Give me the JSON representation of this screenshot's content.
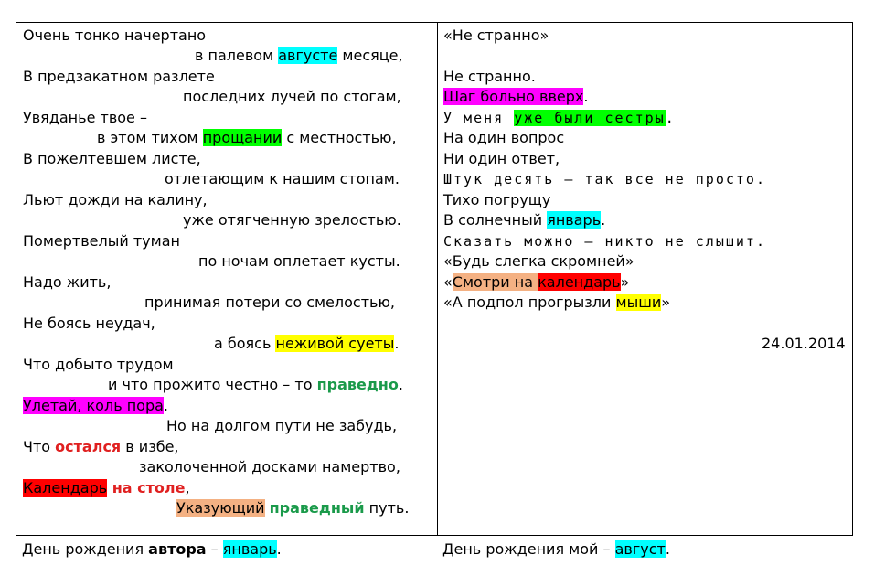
{
  "left_poem": {
    "l1": "Очень тонко начертано",
    "l2_pre": "в палевом ",
    "l2_hl": "августе",
    "l2_post": " месяце,",
    "l3": "В предзакатном разлете",
    "l4": "последних лучей по стогам,",
    "l5": "Увяданье твое –",
    "l6_pre": "в этом тихом ",
    "l6_hl": "прощании",
    "l6_post": " с местностью,",
    "l7": "В пожелтевшем листе,",
    "l8": "отлетающим к нашим стопам.",
    "l9": "Льют дожди на калину,",
    "l10": "уже отягченную зрелостью.",
    "l11": "Помертвелый туман",
    "l12": "по ночам оплетает кусты.",
    "l13": "Надо жить,",
    "l14": "принимая потери со смелостью,",
    "l15": "Не боясь неудач,",
    "l16_pre": "а боясь ",
    "l16_hl": "неживой суеты",
    "l16_post": ".",
    "l17": "Что добыто трудом",
    "l18_pre": "и что прожито честно – то ",
    "l18_bold": "праведно",
    "l18_post": ".",
    "l19_hl": "Улетай, коль пора",
    "l19_post": ".",
    "l20": "Но на долгом пути не забудь,",
    "l21_pre": "Что ",
    "l21_bold": "остался",
    "l21_post": " в избе,",
    "l22": "заколоченной досками намертво,",
    "l23_hl": "Календарь",
    "l23_bold": " на столе",
    "l23_post": ",",
    "l24_hl": "Указующий",
    "l24_sp": " ",
    "l24_bold": "праведный",
    "l24_post": " путь."
  },
  "right_poem": {
    "title": "«Не странно»",
    "r1": "Не странно.",
    "r2_hl": "Шаг больно вверх",
    "r2_post": ".",
    "r3_pre": "У меня ",
    "r3_hl": "уже были сестры",
    "r3_post": ".",
    "r4": "На один вопрос",
    "r5": "Ни один ответ,",
    "r6": "Штук десять – так все не просто.",
    "r7": "Тихо погрущу",
    "r8_pre": "В солнечный ",
    "r8_hl": "январь",
    "r8_post": ".",
    "r9": "Сказать можно – никто не слышит.",
    "r10": "«Будь слегка скромней»",
    "r11_pre": "«",
    "r11_hl1": "Смотри на ",
    "r11_hl2": "календарь",
    "r11_post": "»",
    "r12_pre": "«А подпол прогрызли ",
    "r12_hl": "мыши",
    "r12_post": "»",
    "date": "24.01.2014"
  },
  "footer": {
    "left_pre": "День рождения ",
    "left_bold": "автора",
    "left_mid": " – ",
    "left_hl": "январь",
    "left_post": ".",
    "right_pre": "День рождения мой – ",
    "right_hl": "август",
    "right_post": "."
  },
  "colors": {
    "cyan": "#00ffff",
    "green": "#00ff00",
    "yellow": "#ffff00",
    "magenta": "#ff00ff",
    "red": "#ff0000",
    "peach": "#f4b183",
    "text_green": "#1a9a4a",
    "text_red": "#e02020"
  }
}
